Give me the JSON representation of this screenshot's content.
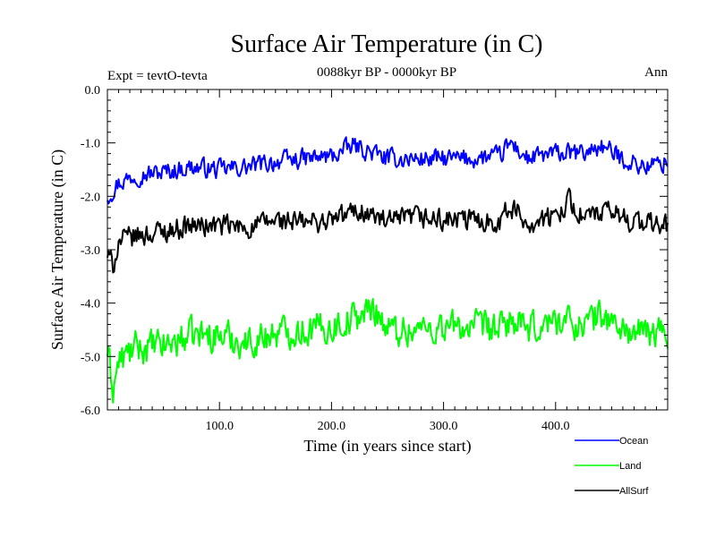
{
  "chart_data": {
    "type": "line",
    "title": "Surface Air Temperature (in C)",
    "subtitle": "0088kyr BP - 0000kyr BP",
    "left_annotation": "Expt = tevtO-tevta",
    "right_annotation": "Ann",
    "xlabel": "Time (in years since start)",
    "ylabel": "Surface Air Temperature (in C)",
    "xlim": [
      0,
      500
    ],
    "ylim": [
      -6.0,
      0.0
    ],
    "xticks": [
      100,
      200,
      300,
      400
    ],
    "xtick_labels": [
      "100.0",
      "200.0",
      "300.0",
      "400.0"
    ],
    "yticks": [
      0,
      -1,
      -2,
      -3,
      -4,
      -5,
      -6
    ],
    "ytick_labels": [
      "0.0",
      "-1.0",
      "-2.0",
      "-3.0",
      "-4.0",
      "-5.0",
      "-6.0"
    ],
    "legend_position": "bottom-right",
    "series": [
      {
        "name": "Ocean",
        "color": "#0000ff",
        "x": [
          0,
          10,
          25,
          50,
          75,
          100,
          125,
          150,
          175,
          200,
          220,
          250,
          275,
          300,
          325,
          350,
          360,
          375,
          400,
          425,
          440,
          460,
          480,
          500
        ],
        "values": [
          -2.0,
          -1.75,
          -1.6,
          -1.55,
          -1.45,
          -1.5,
          -1.45,
          -1.35,
          -1.3,
          -1.25,
          -1.05,
          -1.3,
          -1.3,
          -1.3,
          -1.3,
          -1.25,
          -1.0,
          -1.3,
          -1.2,
          -1.2,
          -1.05,
          -1.3,
          -1.45,
          -1.35
        ]
      },
      {
        "name": "Land",
        "color": "#00ff00",
        "x": [
          0,
          5,
          10,
          25,
          50,
          75,
          100,
          125,
          150,
          175,
          200,
          240,
          250,
          275,
          300,
          325,
          350,
          360,
          375,
          400,
          425,
          440,
          460,
          480,
          500
        ],
        "values": [
          -4.9,
          -5.6,
          -5.1,
          -4.85,
          -4.8,
          -4.6,
          -4.6,
          -4.75,
          -4.55,
          -4.5,
          -4.45,
          -4.1,
          -4.5,
          -4.5,
          -4.45,
          -4.45,
          -4.5,
          -4.3,
          -4.55,
          -4.3,
          -4.4,
          -4.2,
          -4.5,
          -4.6,
          -4.5
        ]
      },
      {
        "name": "AllSurf",
        "color": "#000000",
        "x": [
          0,
          5,
          10,
          25,
          50,
          75,
          100,
          125,
          150,
          175,
          200,
          225,
          250,
          275,
          300,
          325,
          350,
          360,
          375,
          400,
          410,
          425,
          450,
          475,
          500
        ],
        "values": [
          -3.1,
          -3.3,
          -2.85,
          -2.75,
          -2.65,
          -2.55,
          -2.55,
          -2.6,
          -2.45,
          -2.5,
          -2.45,
          -2.25,
          -2.5,
          -2.4,
          -2.45,
          -2.45,
          -2.45,
          -2.2,
          -2.5,
          -2.4,
          -2.05,
          -2.4,
          -2.3,
          -2.5,
          -2.55
        ]
      }
    ]
  }
}
